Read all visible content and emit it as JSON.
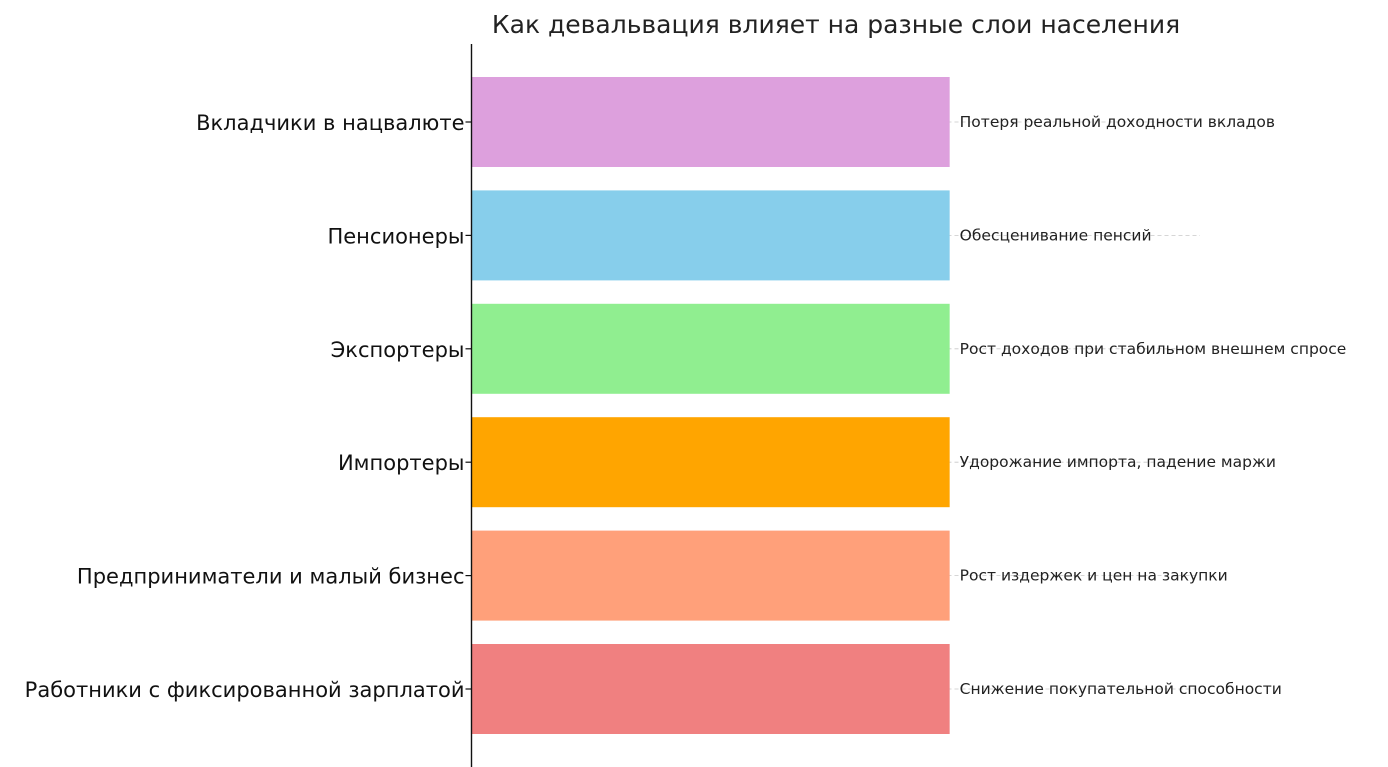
{
  "chart_data": {
    "type": "bar",
    "orientation": "horizontal",
    "title": "Как девальвация влияет на разные слои населения",
    "xlabel": "",
    "ylabel": "",
    "categories": [
      "Вкладчики в нацвалюте",
      "Пенсионеры",
      "Экспортеры",
      "Импортеры",
      "Предприниматели и малый бизнес",
      "Работники с фиксированной зарплатой"
    ],
    "values": [
      1,
      1,
      1,
      1,
      1,
      1
    ],
    "xlim": [
      0,
      1.9
    ],
    "annotations": [
      "Потеря реальной доходности вкладов",
      "Обесценивание пенсий",
      "Рост доходов при стабильном внешнем спросе",
      "Удорожание импорта, падение маржи",
      "Рост издержек и цен на закупки",
      "Снижение покупательной способности"
    ],
    "colors": [
      "#dda0dd",
      "#87ceeb",
      "#90ee90",
      "#ffa500",
      "#ffa07a",
      "#f08080"
    ],
    "grid": "y-dashed",
    "x_axis_visible": false
  }
}
